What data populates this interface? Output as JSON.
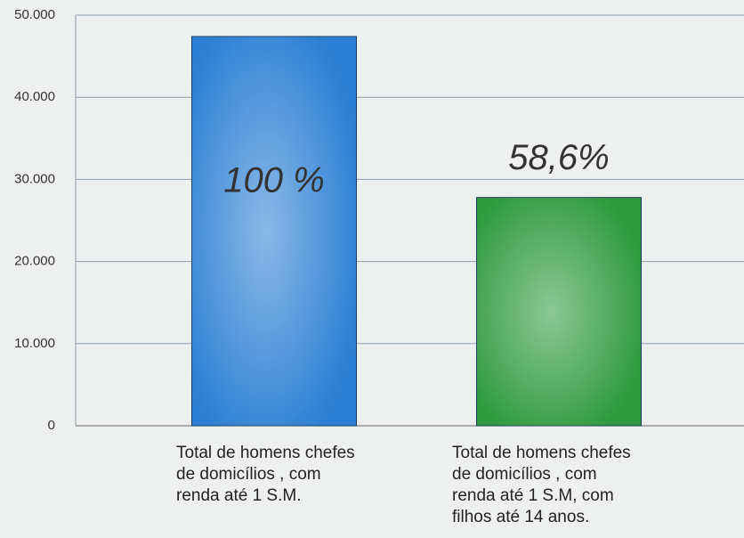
{
  "chart_data": {
    "type": "bar",
    "categories": [
      "Total de homens chefes\nde domicílios , com\nrenda até 1 S.M.",
      "Total de homens chefes\nde domicílios , com\nrenda até 1 S.M, com\nfilhos até 14 anos."
    ],
    "values": [
      47400,
      27800
    ],
    "colors": [
      "#2b7fd4",
      "#2e9a3e"
    ],
    "annotations": [
      "100 %",
      "58,6%"
    ],
    "ylim": [
      0,
      50000
    ],
    "yticks": [
      0,
      {
        "value": 10000,
        "label": "10.000"
      },
      {
        "value": 20000,
        "label": "20.000"
      },
      {
        "value": 30000,
        "label": "30.000"
      },
      {
        "value": 40000,
        "label": "40.000"
      },
      {
        "value": 50000,
        "label": "50.000"
      }
    ],
    "grid": true
  }
}
